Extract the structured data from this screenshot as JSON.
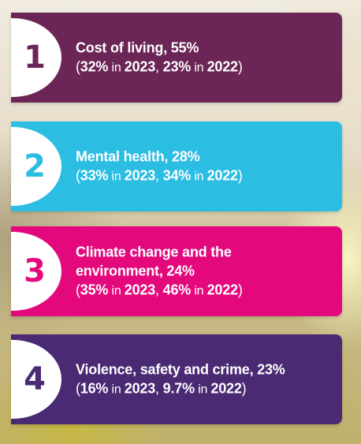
{
  "items": [
    {
      "number": "1",
      "headline": "Cost of living, 55%",
      "open_paren": "(",
      "v2023": "32%",
      "in1": " in ",
      "y2023": "2023",
      "sep": ", ",
      "v2022": "23%",
      "in2": " in ",
      "y2022": "2022",
      "close_paren": ")",
      "color": "#6b2657"
    },
    {
      "number": "2",
      "headline": "Mental health, 28%",
      "open_paren": "(",
      "v2023": "33%",
      "in1": " in ",
      "y2023": "2023",
      "sep": ", ",
      "v2022": "34%",
      "in2": " in ",
      "y2022": "2022",
      "close_paren": ")",
      "color": "#2cbde3"
    },
    {
      "number": "3",
      "headline_line1": "Climate change and the",
      "headline_line2": "environment, 24%",
      "open_paren": "(",
      "v2023": "35%",
      "in1": " in ",
      "y2023": "2023",
      "sep": ", ",
      "v2022": "46%",
      "in2": " in ",
      "y2022": "2022",
      "close_paren": ")",
      "color": "#e3097d"
    },
    {
      "number": "4",
      "headline": "Violence, safety and crime, 23%",
      "open_paren": "(",
      "v2023": "16%",
      "in1": " in ",
      "y2023": "2023",
      "sep": ", ",
      "v2022": "9.7%",
      "in2": " in ",
      "y2022": "2022",
      "close_paren": ")",
      "color": "#4a2a73"
    }
  ]
}
